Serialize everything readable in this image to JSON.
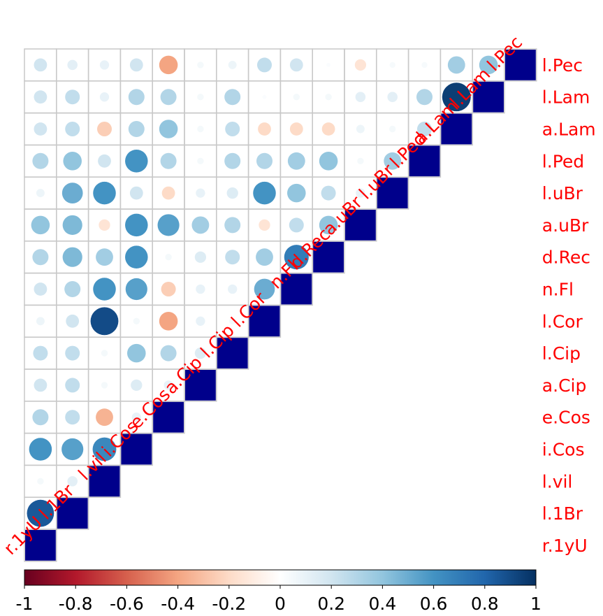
{
  "chart_data": {
    "type": "heatmap",
    "subtype": "correlation-matrix-lower-triangle",
    "variables": [
      "r.1yU",
      "l.1Br",
      "l.vil",
      "i.Cos",
      "e.Cos",
      "a.Cip",
      "l.Cip",
      "l.Cor",
      "n.Fl",
      "d.Rec",
      "a.uBr",
      "l.uBr",
      "l.Ped",
      "a.Lam",
      "l.Lam",
      "l.Pec"
    ],
    "row_labels": [
      "l.Pec",
      "l.Lam",
      "a.Lam",
      "l.Ped",
      "l.uBr",
      "a.uBr",
      "d.Rec",
      "n.Fl",
      "l.Cor",
      "l.Cip",
      "a.Cip",
      "e.Cos",
      "i.Cos",
      "l.vil",
      "l.1Br",
      "r.1yU"
    ],
    "col_labels": [
      "r.1yU",
      "l.1Br",
      "l.vil",
      "i.Cos",
      "e.Cos",
      "a.Cip",
      "l.Cip",
      "l.Cor",
      "n.Fl",
      "d.Rec",
      "a.uBr",
      "l.uBr",
      "l.Ped",
      "a.Lam",
      "l.Lam",
      "l.Pec"
    ],
    "matrix": [
      [
        1
      ],
      [
        0.85,
        1
      ],
      [
        0.05,
        0.12,
        1
      ],
      [
        0.6,
        0.55,
        0.65,
        1
      ],
      [
        0.3,
        0.25,
        -0.35,
        0.1,
        1
      ],
      [
        0.2,
        0.25,
        0.05,
        0.15,
        0.1,
        1
      ],
      [
        0.25,
        0.25,
        0.05,
        0.4,
        0.3,
        0.15,
        1
      ],
      [
        0.08,
        0.2,
        0.9,
        0.05,
        -0.4,
        0.1,
        0.05,
        1
      ],
      [
        0.2,
        0.3,
        0.6,
        0.55,
        -0.25,
        0.1,
        0.1,
        0.5,
        1
      ],
      [
        0.3,
        0.45,
        0.35,
        0.6,
        0.05,
        0.15,
        0.25,
        0.35,
        0.7,
        1
      ],
      [
        0.4,
        0.45,
        -0.15,
        0.6,
        0.55,
        0.35,
        0.3,
        -0.15,
        0.25,
        0.4,
        1
      ],
      [
        0.08,
        0.5,
        0.6,
        0.2,
        -0.2,
        0.1,
        0.15,
        0.6,
        0.4,
        0.25,
        0.1,
        1
      ],
      [
        0.3,
        0.4,
        0.2,
        0.6,
        0.3,
        0.05,
        0.3,
        0.3,
        0.35,
        0.4,
        0.05,
        0.35,
        1
      ],
      [
        0.2,
        0.25,
        -0.25,
        0.3,
        0.4,
        0.05,
        0.25,
        -0.2,
        -0.2,
        -0.2,
        0.08,
        0.05,
        0.25,
        1
      ],
      [
        0.2,
        0.25,
        0.1,
        0.3,
        0.3,
        0.05,
        0.3,
        0.02,
        0.05,
        0.05,
        0.12,
        0.12,
        0.3,
        0.95,
        1
      ],
      [
        0.2,
        0.12,
        0.1,
        0.2,
        -0.4,
        0.05,
        0.08,
        0.25,
        0.2,
        0.02,
        -0.15,
        0.04,
        0.04,
        0.35,
        0.4,
        1
      ]
    ],
    "colorbar": {
      "ticks": [
        "-1",
        "-0.8",
        "-0.6",
        "-0.4",
        "-0.2",
        "0",
        "0.2",
        "0.4",
        "0.6",
        "0.8",
        "1"
      ],
      "range": [
        -1,
        1
      ]
    },
    "colors": {
      "labels": "#ff0000",
      "grid": "#c8c8c8",
      "scale": [
        "#67001F",
        "#B2182B",
        "#D6604D",
        "#F4A582",
        "#FDDBC7",
        "#FFFFFF",
        "#D1E5F0",
        "#92C5DE",
        "#4393C3",
        "#2166AC",
        "#053061"
      ],
      "diagonal": "#00008B"
    }
  }
}
